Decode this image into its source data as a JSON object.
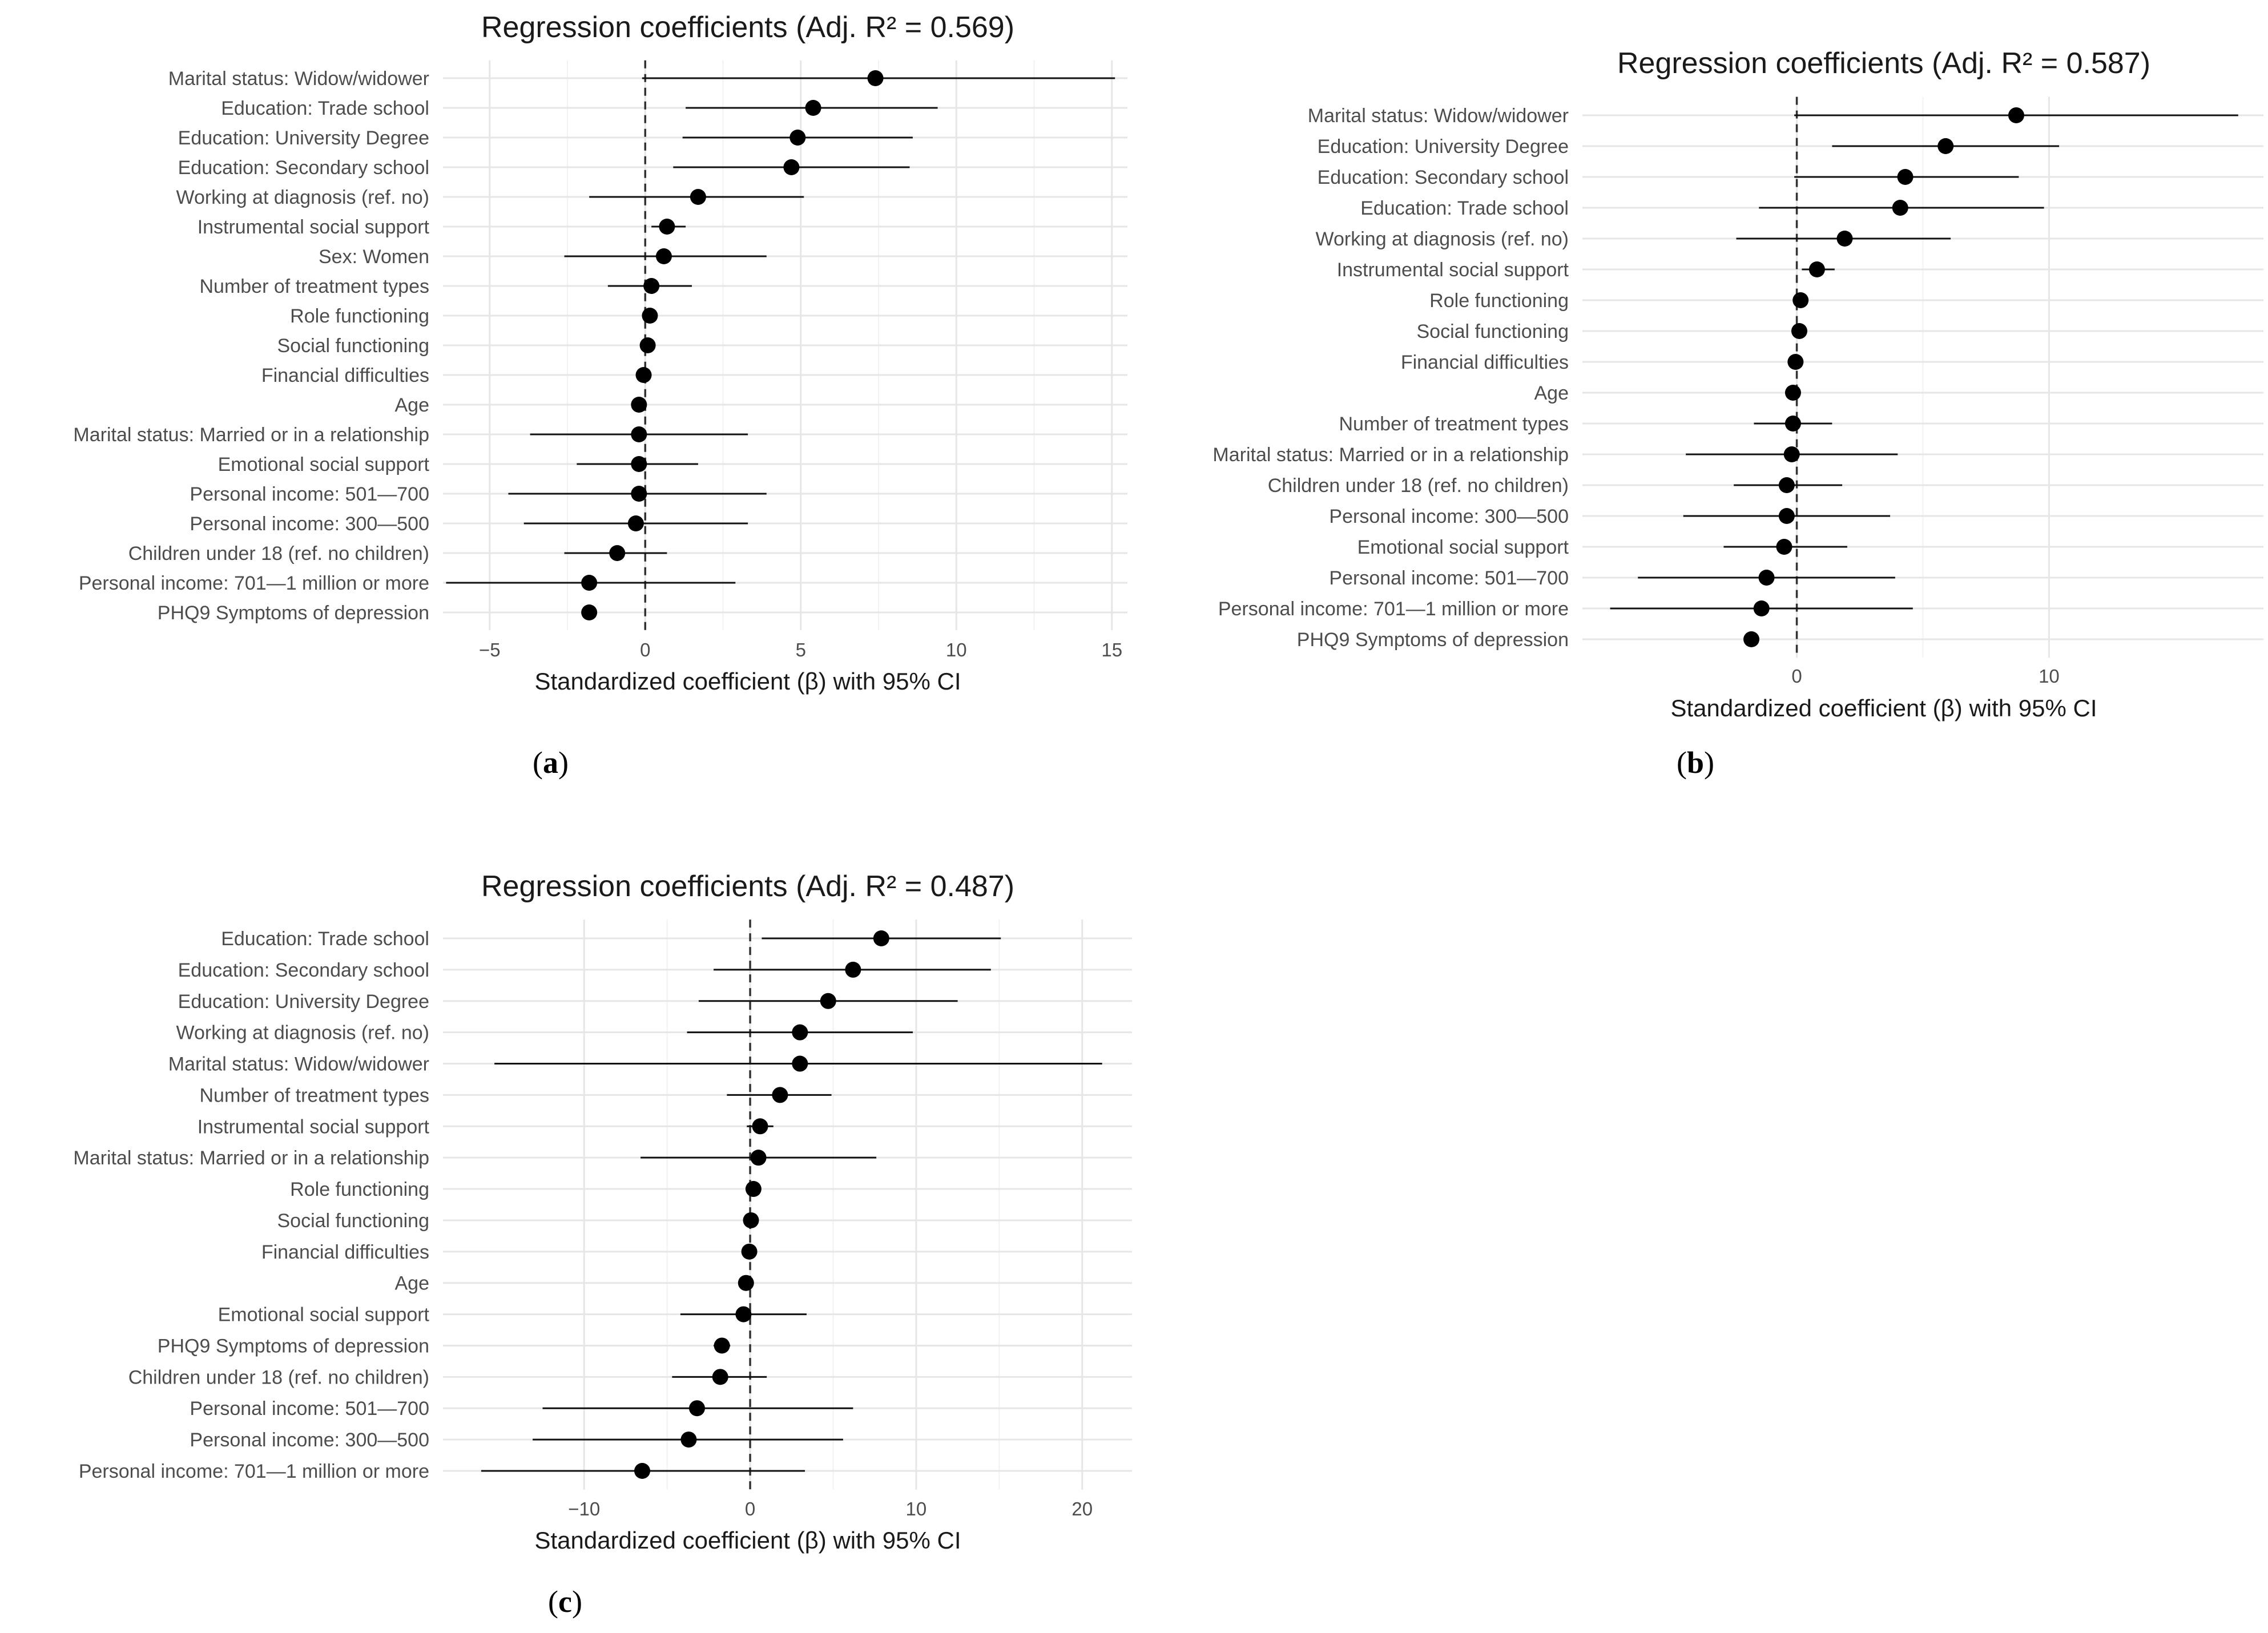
{
  "captions": {
    "a": "a",
    "b": "b",
    "c": "c"
  },
  "chart_data": [
    {
      "type": "forest",
      "id": "a",
      "title": "Regression coefficients (Adj. R² = 0.569)",
      "xlabel": "Standardized coefficient (β) with 95% CI",
      "xlim": [
        -6.5,
        15.5
      ],
      "xticks": [
        -5,
        0,
        5,
        10,
        15
      ],
      "xtick_labels": [
        "−5",
        "0",
        "5",
        "10",
        "15"
      ],
      "rows": [
        {
          "label": "Marital status: Widow/widower",
          "est": 7.4,
          "lo": -0.1,
          "hi": 15.1
        },
        {
          "label": "Education: Trade school",
          "est": 5.4,
          "lo": 1.3,
          "hi": 9.4
        },
        {
          "label": "Education: University Degree",
          "est": 4.9,
          "lo": 1.2,
          "hi": 8.6
        },
        {
          "label": "Education: Secondary school",
          "est": 4.7,
          "lo": 0.9,
          "hi": 8.5
        },
        {
          "label": "Working at diagnosis (ref. no)",
          "est": 1.7,
          "lo": -1.8,
          "hi": 5.1
        },
        {
          "label": "Instrumental social support",
          "est": 0.7,
          "lo": 0.2,
          "hi": 1.3
        },
        {
          "label": "Sex: Women",
          "est": 0.6,
          "lo": -2.6,
          "hi": 3.9
        },
        {
          "label": "Number of treatment types",
          "est": 0.2,
          "lo": -1.2,
          "hi": 1.5
        },
        {
          "label": "Role functioning",
          "est": 0.15,
          "lo": 0.05,
          "hi": 0.25
        },
        {
          "label": "Social functioning",
          "est": 0.08,
          "lo": -0.02,
          "hi": 0.18
        },
        {
          "label": "Financial difficulties",
          "est": -0.05,
          "lo": -0.2,
          "hi": 0.1
        },
        {
          "label": "Age",
          "est": -0.2,
          "lo": -0.35,
          "hi": -0.05
        },
        {
          "label": "Marital status: Married or in a relationship",
          "est": -0.2,
          "lo": -3.7,
          "hi": 3.3
        },
        {
          "label": "Emotional social support",
          "est": -0.2,
          "lo": -2.2,
          "hi": 1.7
        },
        {
          "label": "Personal income: 501—700",
          "est": -0.2,
          "lo": -4.4,
          "hi": 3.9
        },
        {
          "label": "Personal income: 300—500",
          "est": -0.3,
          "lo": -3.9,
          "hi": 3.3
        },
        {
          "label": "Children under 18 (ref. no children)",
          "est": -0.9,
          "lo": -2.6,
          "hi": 0.7
        },
        {
          "label": "Personal income: 701—1 million or more",
          "est": -1.8,
          "lo": -6.4,
          "hi": 2.9
        },
        {
          "label": "PHQ9 Symptoms of depression",
          "est": -1.8,
          "lo": -2.0,
          "hi": -1.6
        }
      ]
    },
    {
      "type": "forest",
      "id": "b",
      "title": "Regression coefficients (Adj. R² = 0.587)",
      "xlabel": "Standardized coefficient (β) with 95% CI",
      "xlim": [
        -8.5,
        18.5
      ],
      "xticks": [
        0,
        10
      ],
      "xtick_labels": [
        "0",
        "10"
      ],
      "rows": [
        {
          "label": "Marital status: Widow/widower",
          "est": 8.7,
          "lo": -0.1,
          "hi": 17.5
        },
        {
          "label": "Education: University Degree",
          "est": 5.9,
          "lo": 1.4,
          "hi": 10.4
        },
        {
          "label": "Education: Secondary school",
          "est": 4.3,
          "lo": -0.1,
          "hi": 8.8
        },
        {
          "label": "Education: Trade school",
          "est": 4.1,
          "lo": -1.5,
          "hi": 9.8
        },
        {
          "label": "Working at diagnosis (ref. no)",
          "est": 1.9,
          "lo": -2.4,
          "hi": 6.1
        },
        {
          "label": "Instrumental social support",
          "est": 0.8,
          "lo": 0.2,
          "hi": 1.5
        },
        {
          "label": "Role functioning",
          "est": 0.15,
          "lo": 0.05,
          "hi": 0.25
        },
        {
          "label": "Social functioning",
          "est": 0.1,
          "lo": 0.0,
          "hi": 0.2
        },
        {
          "label": "Financial difficulties",
          "est": -0.05,
          "lo": -0.2,
          "hi": 0.1
        },
        {
          "label": "Age",
          "est": -0.15,
          "lo": -0.3,
          "hi": 0.0
        },
        {
          "label": "Number of treatment types",
          "est": -0.15,
          "lo": -1.7,
          "hi": 1.4
        },
        {
          "label": "Marital status: Married or in a relationship",
          "est": -0.2,
          "lo": -4.4,
          "hi": 4.0
        },
        {
          "label": "Children under 18 (ref. no children)",
          "est": -0.4,
          "lo": -2.5,
          "hi": 1.8
        },
        {
          "label": "Personal income: 300—500",
          "est": -0.4,
          "lo": -4.5,
          "hi": 3.7
        },
        {
          "label": "Emotional social support",
          "est": -0.5,
          "lo": -2.9,
          "hi": 2.0
        },
        {
          "label": "Personal income: 501—700",
          "est": -1.2,
          "lo": -6.3,
          "hi": 3.9
        },
        {
          "label": "Personal income: 701—1 million or more",
          "est": -1.4,
          "lo": -7.4,
          "hi": 4.6
        },
        {
          "label": "PHQ9 Symptoms of depression",
          "est": -1.8,
          "lo": -2.1,
          "hi": -1.5
        }
      ]
    },
    {
      "type": "forest",
      "id": "c",
      "title": "Regression coefficients (Adj. R² = 0.487)",
      "xlabel": "Standardized coefficient (β) with 95% CI",
      "xlim": [
        -18.5,
        23.0
      ],
      "xticks": [
        -10,
        0,
        10,
        20
      ],
      "xtick_labels": [
        "−10",
        "0",
        "10",
        "20"
      ],
      "rows": [
        {
          "label": "Education: Trade school",
          "est": 7.9,
          "lo": 0.7,
          "hi": 15.1
        },
        {
          "label": "Education: Secondary school",
          "est": 6.2,
          "lo": -2.2,
          "hi": 14.5
        },
        {
          "label": "Education: University Degree",
          "est": 4.7,
          "lo": -3.1,
          "hi": 12.5
        },
        {
          "label": "Working at diagnosis (ref. no)",
          "est": 3.0,
          "lo": -3.8,
          "hi": 9.8
        },
        {
          "label": "Marital status: Widow/widower",
          "est": 3.0,
          "lo": -15.4,
          "hi": 21.2
        },
        {
          "label": "Number of treatment types",
          "est": 1.8,
          "lo": -1.4,
          "hi": 4.9
        },
        {
          "label": "Instrumental social support",
          "est": 0.6,
          "lo": -0.2,
          "hi": 1.4
        },
        {
          "label": "Marital status: Married or in a relationship",
          "est": 0.5,
          "lo": -6.6,
          "hi": 7.6
        },
        {
          "label": "Role functioning",
          "est": 0.2,
          "lo": 0.1,
          "hi": 0.3
        },
        {
          "label": "Social functioning",
          "est": 0.05,
          "lo": -0.05,
          "hi": 0.15
        },
        {
          "label": "Financial difficulties",
          "est": -0.05,
          "lo": -0.2,
          "hi": 0.1
        },
        {
          "label": "Age",
          "est": -0.25,
          "lo": -0.4,
          "hi": -0.1
        },
        {
          "label": "Emotional social support",
          "est": -0.4,
          "lo": -4.2,
          "hi": 3.4
        },
        {
          "label": "PHQ9 Symptoms of depression",
          "est": -1.7,
          "lo": -2.2,
          "hi": -1.2
        },
        {
          "label": "Children under 18 (ref. no children)",
          "est": -1.8,
          "lo": -4.7,
          "hi": 1.0
        },
        {
          "label": "Personal income: 501—700",
          "est": -3.2,
          "lo": -12.5,
          "hi": 6.2
        },
        {
          "label": "Personal income: 300—500",
          "est": -3.7,
          "lo": -13.1,
          "hi": 5.6
        },
        {
          "label": "Personal income: 701—1 million or more",
          "est": -6.5,
          "lo": -16.2,
          "hi": 3.3
        }
      ]
    }
  ]
}
